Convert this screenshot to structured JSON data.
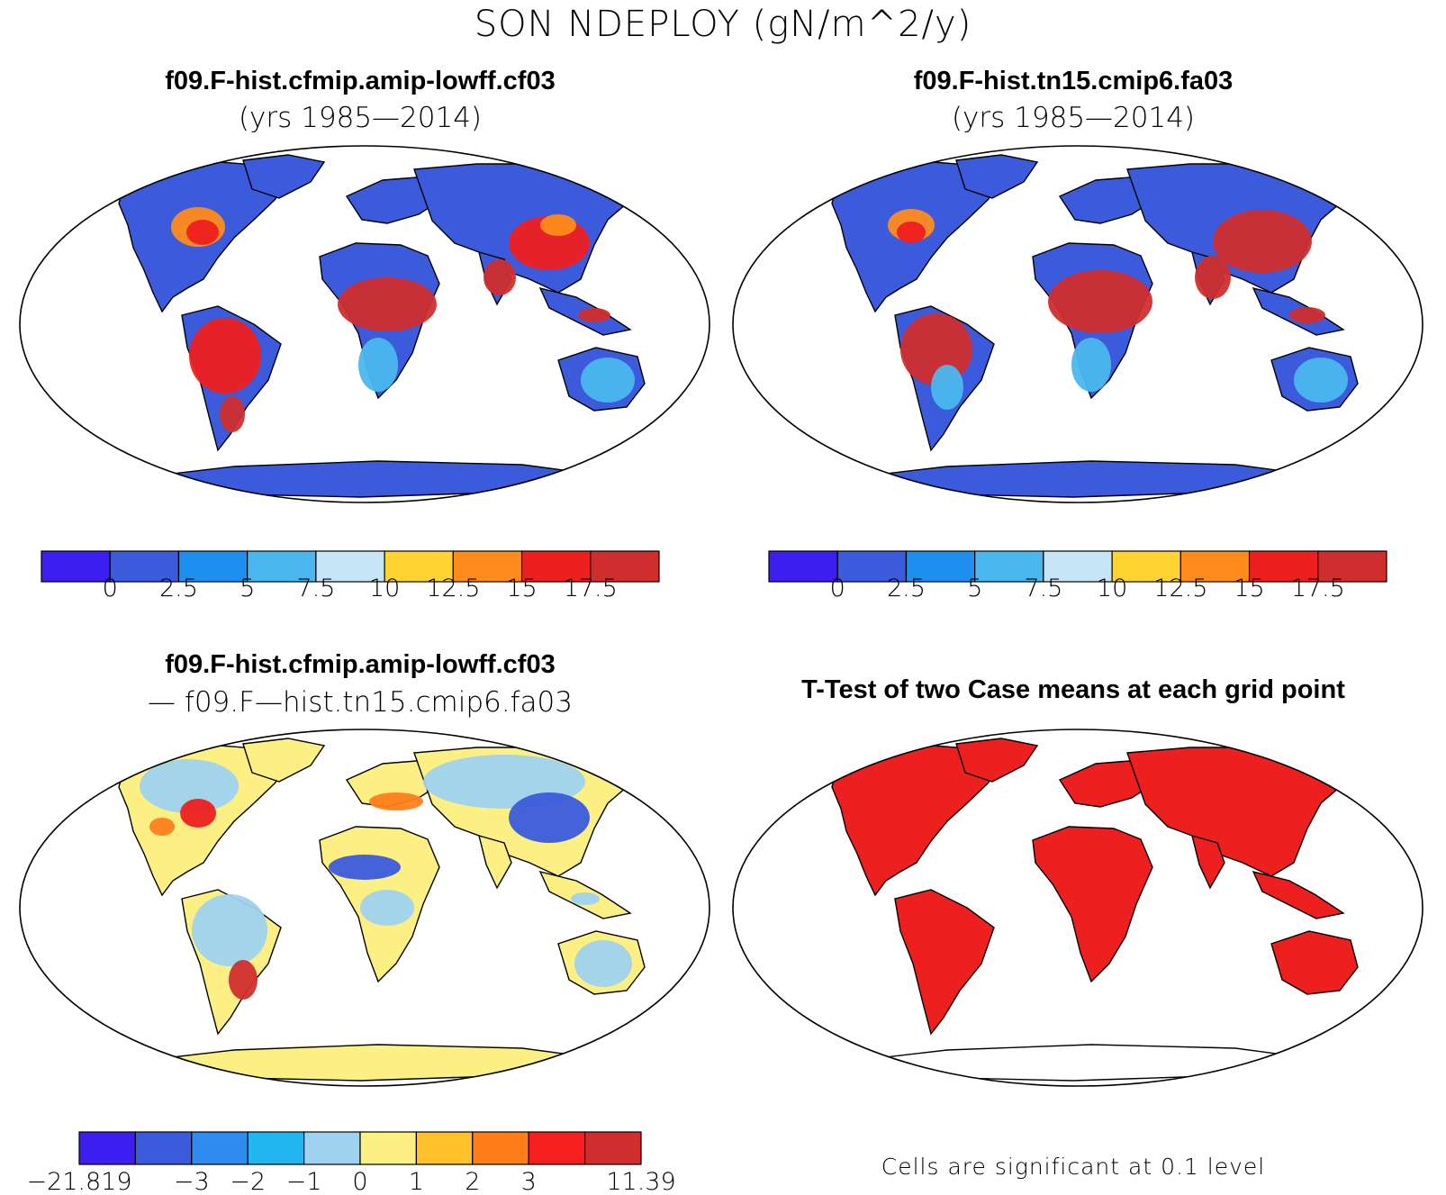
{
  "figure_title": "SON NDEPLOY (gN/m^2/y)",
  "panels": [
    {
      "id": "a",
      "title": "f09.F-hist.cfmip.amip-lowff.cf03",
      "subtitle": "(yrs 1985—2014)",
      "type": "field-map"
    },
    {
      "id": "b",
      "title": "f09.F-hist.tn15.cmip6.fa03",
      "subtitle": "(yrs 1985—2014)",
      "type": "field-map"
    },
    {
      "id": "c",
      "title": "f09.F-hist.cfmip.amip-lowff.cf03",
      "subtitle": "— f09.F—hist.tn15.cmip6.fa03",
      "type": "difference-map"
    },
    {
      "id": "d",
      "title": "T-Test of two Case means at each grid point",
      "subtitle": "",
      "type": "significance-map",
      "note": "Cells are significant at 0.1 level"
    }
  ],
  "colorbars": {
    "field": {
      "colors": [
        "#3d1ef0",
        "#3b5bdc",
        "#1e8ff0",
        "#4ab8ee",
        "#c6e6f7",
        "#ffd430",
        "#ff8c1a",
        "#ee1f1f",
        "#d02e2e"
      ],
      "labels": [
        "0",
        "2.5",
        "5",
        "7.5",
        "10",
        "12.5",
        "15",
        "17.5"
      ]
    },
    "diff": {
      "colors": [
        "#3d1ef0",
        "#3b5bdc",
        "#2f8cee",
        "#22b6f0",
        "#9fd2ee",
        "#fcf084",
        "#ffc02a",
        "#ff7e1a",
        "#f51f1f",
        "#d02e2e"
      ],
      "labels": [
        "−21.819",
        "−3",
        "−2",
        "−1",
        "0",
        "1",
        "2",
        "3",
        "11.39"
      ]
    }
  },
  "map_colors": {
    "low": "#3b5bdc",
    "mid": "#4ab8ee",
    "high": "#d02e2e",
    "hot": "#ee1f1f",
    "warm": "#ff8c1a",
    "diff_base": "#fcf084",
    "diff_neg": "#9fd2ee",
    "diff_strong_neg": "#3b5bdc",
    "diff_pos": "#ff7e1a",
    "sig": "#ee1f1f"
  }
}
